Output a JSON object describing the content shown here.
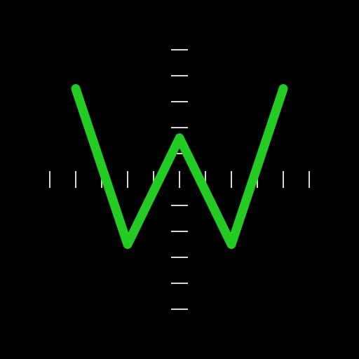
{
  "chart_data": {
    "type": "line",
    "title": "",
    "xlabel": "",
    "ylabel": "",
    "grid": false,
    "legend": "none",
    "xlim": [
      -5,
      5
    ],
    "ylim": [
      -5,
      5
    ],
    "x_ticks": [
      -5,
      -4,
      -3,
      -2,
      -1,
      0,
      1,
      2,
      3,
      4,
      5
    ],
    "y_ticks": [
      -5,
      -4,
      -3,
      -2,
      -1,
      1,
      2,
      3,
      4,
      5
    ],
    "series": [
      {
        "color": "#22cc22",
        "points": [
          {
            "x": -4,
            "y": 3.5
          },
          {
            "x": -2,
            "y": -2.5
          },
          {
            "x": 0,
            "y": 1.6
          },
          {
            "x": 2,
            "y": -2.5
          },
          {
            "x": 4,
            "y": 3.5
          }
        ]
      }
    ]
  },
  "colors": {
    "background": "#000000",
    "axis": "#ffffff",
    "line": "#22cc22"
  }
}
